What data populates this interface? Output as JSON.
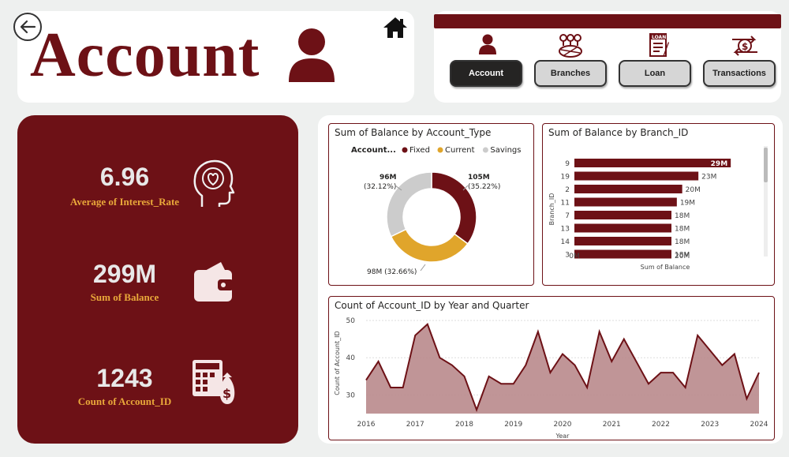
{
  "header": {
    "title": "Account"
  },
  "nav": {
    "buttons": [
      {
        "label": "Account",
        "active": true,
        "icon": "user-icon"
      },
      {
        "label": "Branches",
        "active": false,
        "icon": "branches-icon"
      },
      {
        "label": "Loan",
        "active": false,
        "icon": "loan-icon"
      },
      {
        "label": "Transactions",
        "active": false,
        "icon": "transactions-icon"
      }
    ]
  },
  "kpis": [
    {
      "value": "6.96",
      "label": "Average of Interest_Rate",
      "icon": "head-heart-icon"
    },
    {
      "value": "299M",
      "label": "Sum of Balance",
      "icon": "wallet-icon"
    },
    {
      "value": "1243",
      "label": "Count of Account_ID",
      "icon": "calculator-money-icon"
    }
  ],
  "colors": {
    "brand": "#6d1116",
    "accent": "#e9a83a",
    "fixed": "#6d1116",
    "current": "#e0a52b",
    "savings": "#cccccc",
    "area": "#b98a8c"
  },
  "chart_data": [
    {
      "type": "donut",
      "title": "Sum of Balance by Account_Type",
      "legend_title": "Account...",
      "series": [
        {
          "name": "Fixed",
          "value": 105,
          "label": "105M",
          "pct": "(35.22%)"
        },
        {
          "name": "Current",
          "value": 98,
          "label": "98M (32.66%)",
          "pct": ""
        },
        {
          "name": "Savings",
          "value": 96,
          "label": "96M",
          "pct": "(32.12%)"
        }
      ]
    },
    {
      "type": "bar",
      "orientation": "horizontal",
      "title": "Sum of Balance by Branch_ID",
      "xlabel": "Sum of Balance",
      "ylabel": "Branch_ID",
      "xticks": [
        "0M",
        "20M"
      ],
      "xlim": [
        0,
        30
      ],
      "categories": [
        "9",
        "19",
        "2",
        "11",
        "7",
        "13",
        "14",
        "3"
      ],
      "values": [
        29,
        23,
        20,
        19,
        18,
        18,
        18,
        18
      ],
      "labels": [
        "29M",
        "23M",
        "20M",
        "19M",
        "18M",
        "18M",
        "18M",
        "18M"
      ]
    },
    {
      "type": "area",
      "title": "Count of Account_ID by Year and Quarter",
      "xlabel": "Year",
      "ylabel": "Count of Account_ID",
      "ylim": [
        25,
        50
      ],
      "yticks": [
        30,
        40,
        50
      ],
      "xticks": [
        "2016",
        "2017",
        "2018",
        "2019",
        "2020",
        "2021",
        "2022",
        "2023",
        "2024"
      ],
      "x_start": 2016.0,
      "x_step": 0.25,
      "values": [
        34,
        39,
        32,
        32,
        46,
        49,
        40,
        38,
        35,
        26,
        35,
        33,
        33,
        38,
        47,
        36,
        41,
        38,
        32,
        47,
        39,
        45,
        39,
        33,
        36,
        36,
        32,
        46,
        42,
        38,
        41,
        29,
        36
      ]
    }
  ]
}
